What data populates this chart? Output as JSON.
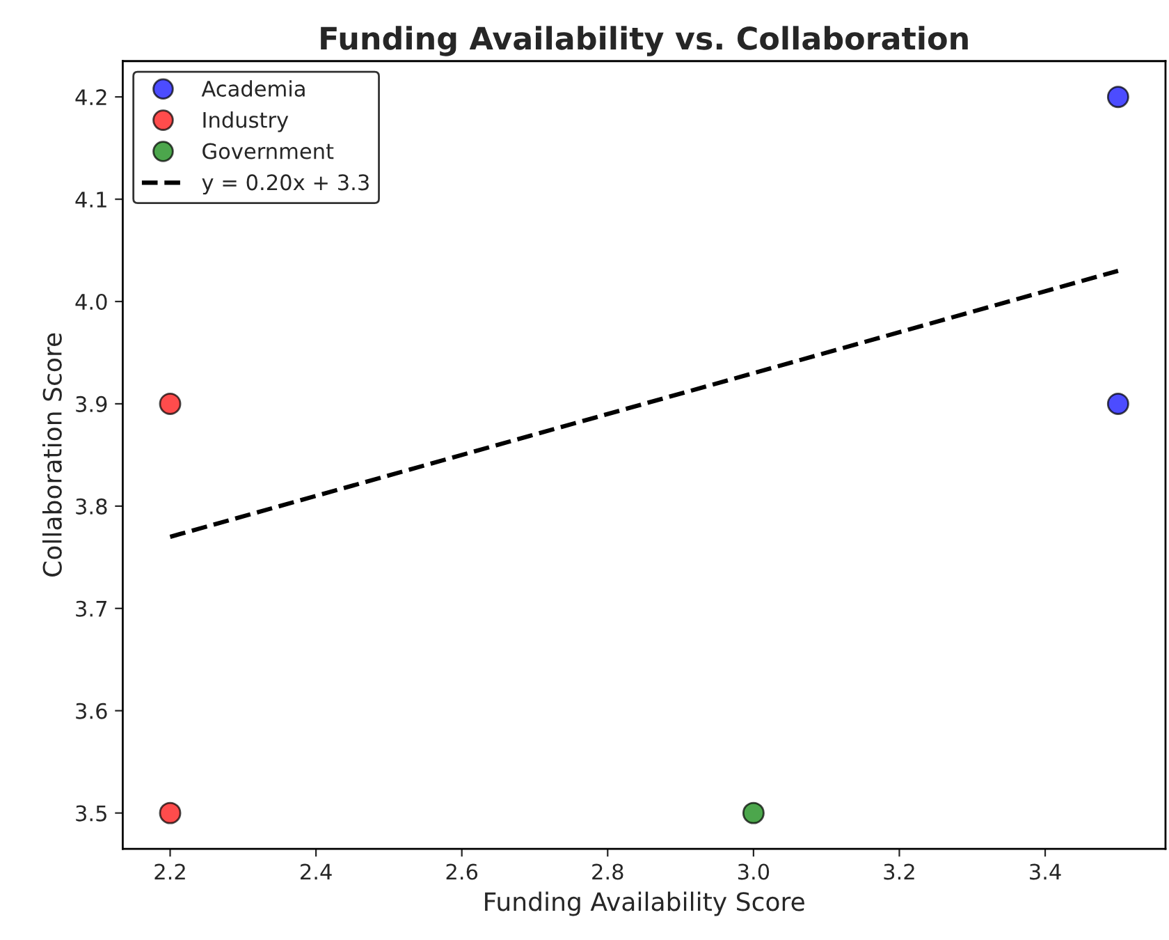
{
  "chart_data": {
    "type": "scatter",
    "title": "Funding Availability vs. Collaboration",
    "xlabel": "Funding Availability Score",
    "ylabel": "Collaboration Score",
    "series": [
      {
        "name": "Academia",
        "color": "#0000ff",
        "marker": "circle",
        "x": [
          3.5,
          3.5
        ],
        "values": [
          4.2,
          3.9
        ]
      },
      {
        "name": "Industry",
        "color": "#ff0000",
        "marker": "circle",
        "x": [
          2.2,
          2.2
        ],
        "values": [
          3.9,
          3.5
        ]
      },
      {
        "name": "Government",
        "color": "#008000",
        "marker": "circle",
        "x": [
          3.0
        ],
        "values": [
          3.5
        ]
      },
      {
        "name": "y = 0.20x + 3.3",
        "type": "line",
        "color": "#000000",
        "line_style": "dashed",
        "marker": "none",
        "x": [
          2.2,
          3.5
        ],
        "values": [
          3.77,
          4.03
        ]
      }
    ],
    "xlim": [
      2.135,
      3.565
    ],
    "ylim": [
      3.465,
      4.235
    ],
    "xticks": [
      2.2,
      2.4,
      2.6,
      2.8,
      {
        "value": 3.0,
        "label": "3.0"
      },
      3.2,
      3.4
    ],
    "yticks": [
      3.5,
      3.6,
      3.7,
      3.8,
      3.9,
      {
        "value": 4.0,
        "label": "4.0"
      },
      4.1,
      4.2
    ],
    "legend": "top left",
    "grid": false
  }
}
